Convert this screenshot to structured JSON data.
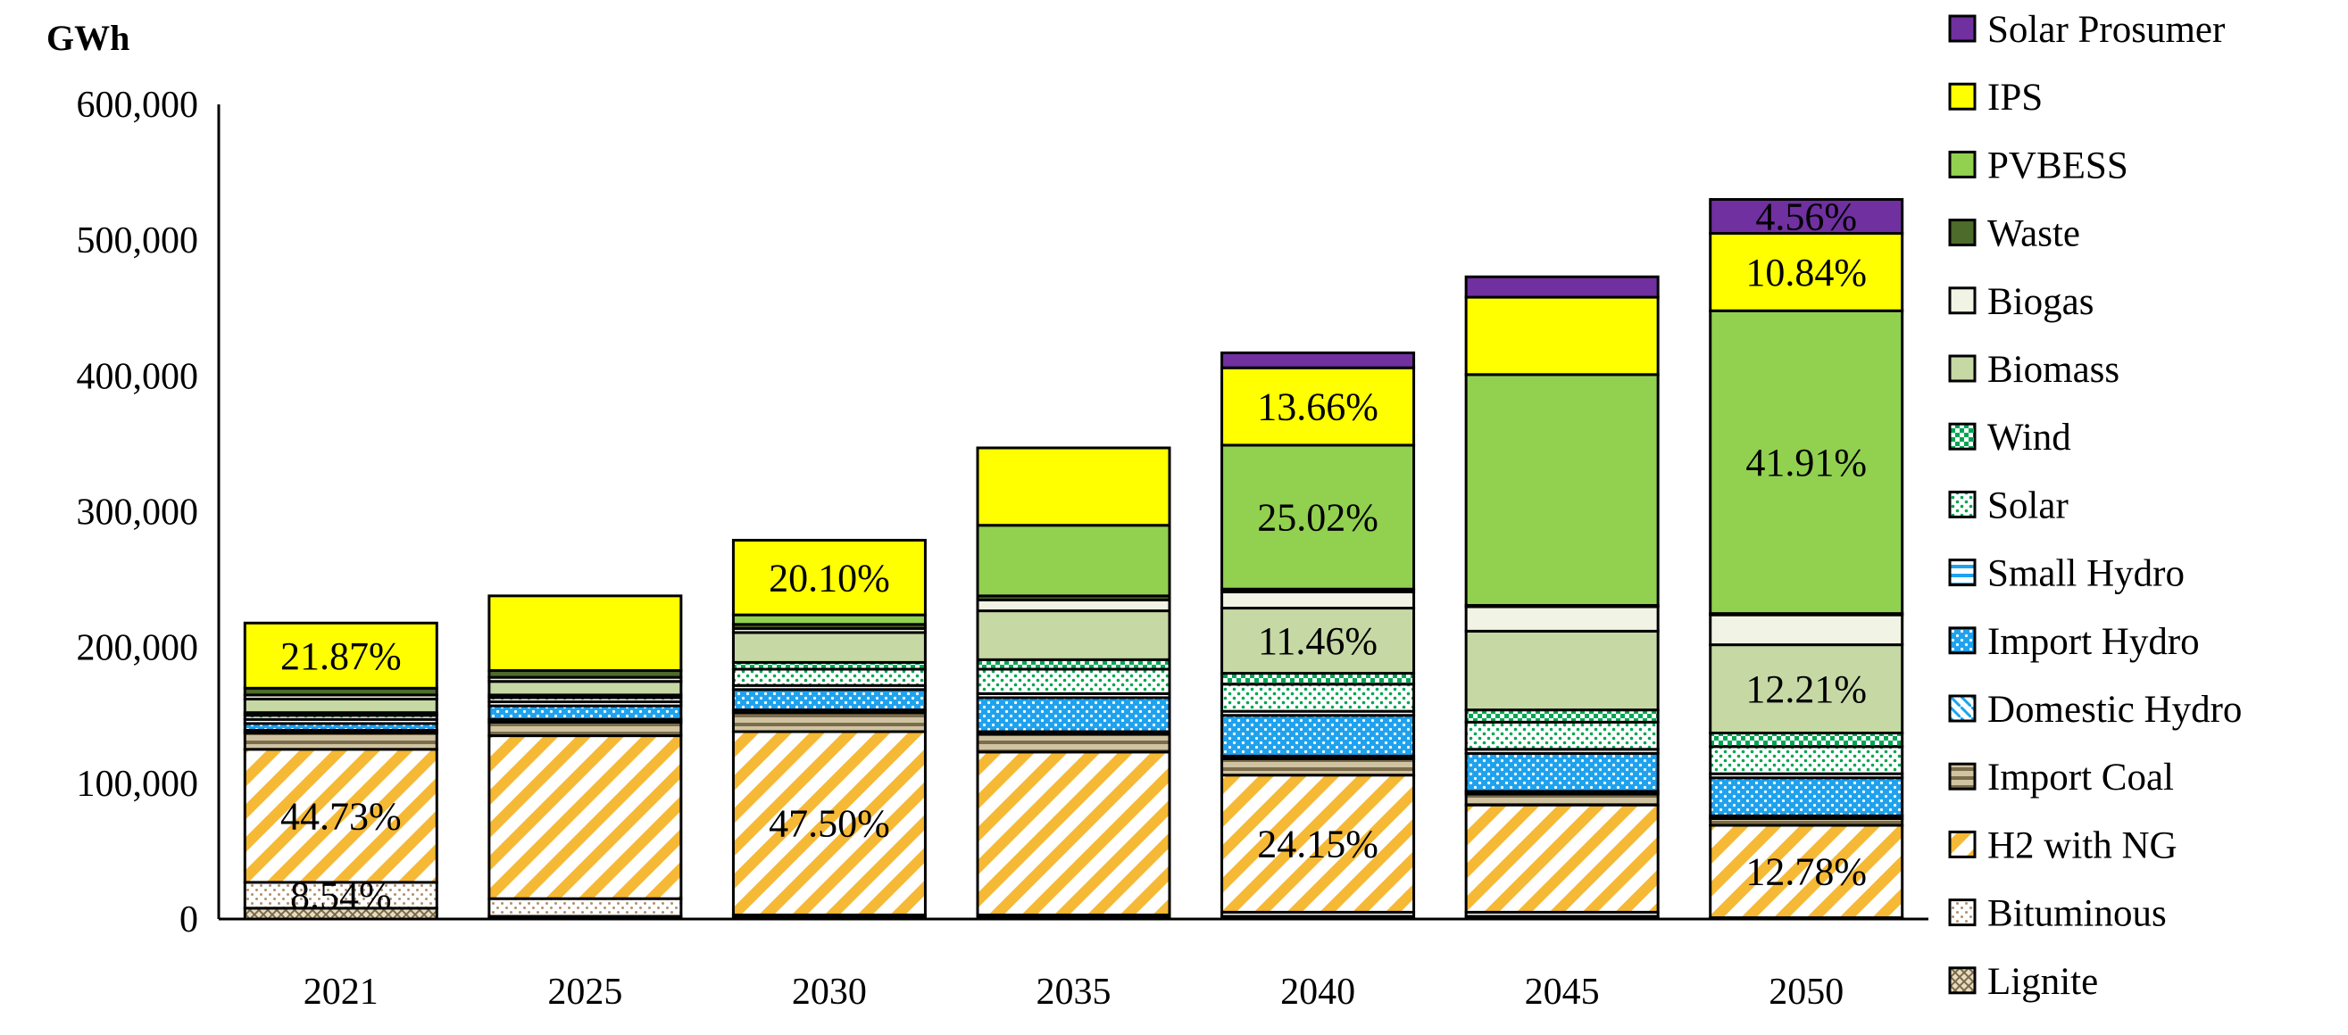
{
  "chart_data": {
    "type": "bar",
    "stacked": true,
    "title": "",
    "ylabel": "GWh",
    "xlabel": "",
    "ylim": [
      0,
      600000
    ],
    "yticks": [
      0,
      100000,
      200000,
      300000,
      400000,
      500000,
      600000
    ],
    "ytick_labels": [
      "0",
      "100,000",
      "200,000",
      "300,000",
      "400,000",
      "500,000",
      "600,000"
    ],
    "categories": [
      "2021",
      "2025",
      "2030",
      "2035",
      "2040",
      "2045",
      "2050"
    ],
    "legend_position": "right",
    "series": [
      {
        "name": "Lignite",
        "values": [
          8000,
          2000,
          2000,
          2000,
          2000,
          2000,
          1000
        ]
      },
      {
        "name": "Bituminous",
        "values": [
          19000,
          13000,
          1000,
          1000,
          3000,
          3000,
          0
        ]
      },
      {
        "name": "H2 with NG",
        "values": [
          98000,
          120000,
          135000,
          120000,
          101000,
          79000,
          68000
        ]
      },
      {
        "name": "Import Coal",
        "values": [
          12000,
          10000,
          14000,
          13000,
          12000,
          8000,
          5000
        ]
      },
      {
        "name": "Domestic Hydro",
        "values": [
          2000,
          2000,
          2000,
          2000,
          2000,
          2000,
          2000
        ]
      },
      {
        "name": "Import Hydro",
        "values": [
          5000,
          10000,
          15000,
          25000,
          30000,
          28000,
          28000
        ]
      },
      {
        "name": "Small Hydro",
        "values": [
          3000,
          3000,
          3000,
          3000,
          3000,
          3000,
          3000
        ]
      },
      {
        "name": "Solar",
        "values": [
          3000,
          3000,
          12000,
          18000,
          20000,
          20000,
          20000
        ]
      },
      {
        "name": "Wind",
        "values": [
          2000,
          2000,
          5000,
          7000,
          8000,
          9000,
          10000
        ]
      },
      {
        "name": "Biomass",
        "values": [
          10000,
          10000,
          22000,
          36000,
          48000,
          58000,
          65000
        ]
      },
      {
        "name": "Biogas",
        "values": [
          3000,
          3000,
          3000,
          8000,
          12000,
          18000,
          22000
        ]
      },
      {
        "name": "Waste",
        "values": [
          5000,
          5000,
          3000,
          3000,
          2000,
          1000,
          1000
        ]
      },
      {
        "name": "PVBESS",
        "values": [
          0,
          0,
          7000,
          52000,
          106000,
          170000,
          223000
        ]
      },
      {
        "name": "IPS",
        "values": [
          48000,
          55000,
          55000,
          57000,
          57000,
          57000,
          57000
        ]
      },
      {
        "name": "Solar Prosumer",
        "values": [
          0,
          0,
          0,
          0,
          11000,
          15000,
          25000
        ]
      }
    ],
    "annotations": [
      {
        "category": "2021",
        "series": "Bituminous",
        "text": "8.54%"
      },
      {
        "category": "2021",
        "series": "H2 with NG",
        "text": "44.73%"
      },
      {
        "category": "2021",
        "series": "IPS",
        "text": "21.87%"
      },
      {
        "category": "2030",
        "series": "H2 with NG",
        "text": "47.50%"
      },
      {
        "category": "2030",
        "series": "IPS",
        "text": "20.10%"
      },
      {
        "category": "2040",
        "series": "H2 with NG",
        "text": "24.15%"
      },
      {
        "category": "2040",
        "series": "Biomass",
        "text": "11.46%"
      },
      {
        "category": "2040",
        "series": "PVBESS",
        "text": "25.02%"
      },
      {
        "category": "2040",
        "series": "IPS",
        "text": "13.66%"
      },
      {
        "category": "2050",
        "series": "H2 with NG",
        "text": "12.78%"
      },
      {
        "category": "2050",
        "series": "Biomass",
        "text": "12.21%"
      },
      {
        "category": "2050",
        "series": "PVBESS",
        "text": "41.91%"
      },
      {
        "category": "2050",
        "series": "IPS",
        "text": "10.84%"
      },
      {
        "category": "2050",
        "series": "Solar Prosumer",
        "text": "4.56%"
      }
    ]
  },
  "colors": {
    "Lignite": "#d8c8a8",
    "Bituminous": "#ffffff",
    "H2 with NG": "#ffffff",
    "Import Coal": "#b5a887",
    "Domestic Hydro": "#ffffff",
    "Import Hydro": "#1fa2ee",
    "Small Hydro": "#ffffff",
    "Solar": "#ffffff",
    "Wind": "#ffffff",
    "Biomass": "#c6d8a4",
    "Biogas": "#f1f3e4",
    "Waste": "#4d6b2a",
    "PVBESS": "#92d050",
    "IPS": "#ffff00",
    "Solar Prosumer": "#7030a0",
    "hatch_orange": "#f5b936",
    "blue_pattern": "#1fa2ee",
    "green_pattern": "#00a651"
  }
}
